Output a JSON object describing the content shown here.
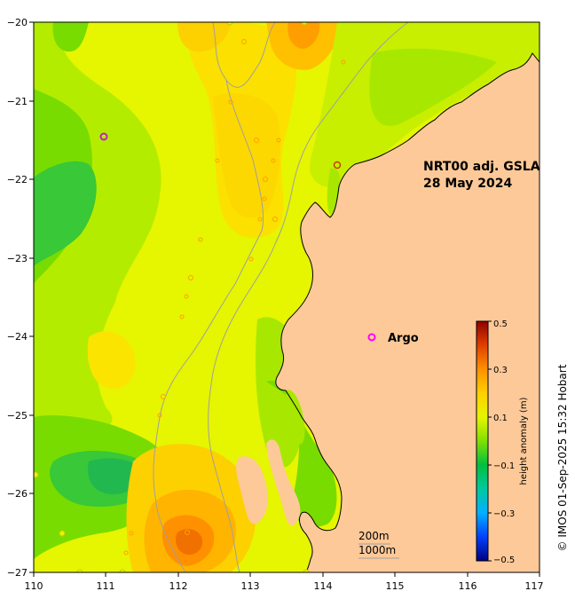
{
  "map": {
    "title_line1": "NRT00 adj. GSLA",
    "title_line2": "28 May 2024",
    "legend_marker_label": "Argo",
    "colorbar_label": "height anomaly (m)",
    "colorbar_ticks": [
      "0.5",
      "0.3",
      "0.1",
      "−0.1",
      "−0.3",
      "−0.5"
    ],
    "depth_label_1": "200m",
    "depth_label_2": "1000m",
    "credit": "© IMOS 01-Sep-2025 15:32 Hobart",
    "x_ticks": [
      "110",
      "111",
      "112",
      "113",
      "114",
      "115",
      "116",
      "117"
    ],
    "y_ticks": [
      "−20",
      "−21",
      "−22",
      "−23",
      "−24",
      "−25",
      "−26",
      "−27"
    ],
    "colors": {
      "land": "#fdc998",
      "ocean_base": "#e6f500",
      "argo": "#ff00ff"
    }
  }
}
